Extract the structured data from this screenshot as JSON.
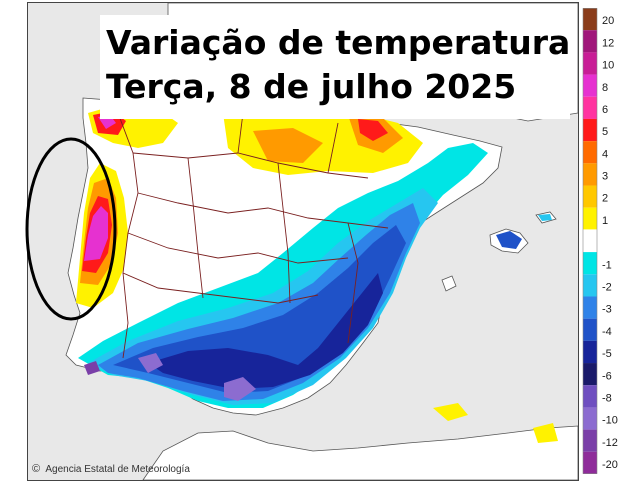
{
  "map": {
    "title_line1": "Variação de temperatura",
    "title_line2": "Terça, 8 de julho 2025",
    "credit": "Agencia Estatal de Meteorología",
    "credit_symbol": "©",
    "highlight_color": "#000000",
    "sea_color": "#e8e8e8",
    "land_color": "#ffffff",
    "border_color": "#7a2020"
  },
  "legend": {
    "items": [
      {
        "label": "20",
        "color": "#8a3c1a"
      },
      {
        "label": "12",
        "color": "#a0177a"
      },
      {
        "label": "10",
        "color": "#c81e96"
      },
      {
        "label": "8",
        "color": "#e631d0"
      },
      {
        "label": "6",
        "color": "#ff33a0"
      },
      {
        "label": "5",
        "color": "#ff1a1a"
      },
      {
        "label": "4",
        "color": "#ff6a00"
      },
      {
        "label": "3",
        "color": "#ff9a00"
      },
      {
        "label": "2",
        "color": "#ffc800"
      },
      {
        "label": "1",
        "color": "#fff200"
      },
      {
        "label": "",
        "color": "#ffffff"
      },
      {
        "label": "-1",
        "color": "#00e5e5"
      },
      {
        "label": "-2",
        "color": "#26c6f0"
      },
      {
        "label": "-3",
        "color": "#2f82e8"
      },
      {
        "label": "-4",
        "color": "#1f52c8"
      },
      {
        "label": "-5",
        "color": "#17249a"
      },
      {
        "label": "-6",
        "color": "#1a1a6a"
      },
      {
        "label": "-8",
        "color": "#6f4fc0"
      },
      {
        "label": "-10",
        "color": "#8c6cd0"
      },
      {
        "label": "-12",
        "color": "#7a3fa8"
      },
      {
        "label": "-20",
        "color": "#8f2c9a"
      }
    ]
  }
}
